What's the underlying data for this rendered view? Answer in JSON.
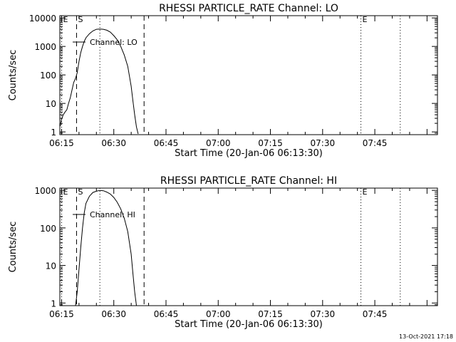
{
  "footer": {
    "timestamp": "13-Oct-2021 17:18"
  },
  "chart_data": [
    {
      "type": "line",
      "title": "RHESSI PARTICLE_RATE Channel: LO",
      "xlabel": "Start Time (20-Jan-06 06:13:30)",
      "ylabel": "Counts/sec",
      "x_unit": "minutes",
      "xlim": [
        374.5,
        483
      ],
      "xticks": [
        {
          "v": 375,
          "label": "06:15"
        },
        {
          "v": 390,
          "label": "06:30"
        },
        {
          "v": 405,
          "label": "06:45"
        },
        {
          "v": 420,
          "label": "07:00"
        },
        {
          "v": 435,
          "label": "07:15"
        },
        {
          "v": 450,
          "label": "07:30"
        },
        {
          "v": 465,
          "label": "07:45"
        }
      ],
      "yscale": "log",
      "ylim": [
        0.8,
        12000
      ],
      "yticks": [
        {
          "v": 1,
          "label": "1"
        },
        {
          "v": 10,
          "label": "10"
        },
        {
          "v": 100,
          "label": "100"
        },
        {
          "v": 1000,
          "label": "1000"
        },
        {
          "v": 10000,
          "label": "10000"
        }
      ],
      "legend": {
        "label": "Channel: LO",
        "position": "top-left"
      },
      "markers": [
        {
          "x": 375.0,
          "style": "dotted",
          "label": "E"
        },
        {
          "x": 379.3,
          "style": "dashed",
          "label": "S"
        },
        {
          "x": 386.0,
          "style": "dotted",
          "label": ""
        },
        {
          "x": 398.7,
          "style": "dashed",
          "label": ""
        },
        {
          "x": 461.0,
          "style": "dotted",
          "label": "E"
        },
        {
          "x": 472.3,
          "style": "dotted",
          "label": ""
        }
      ],
      "series": [
        {
          "x": [
            374.6,
            375.0,
            375.5,
            376.0,
            376.5,
            377.0,
            377.5,
            378.0,
            378.5,
            379.0,
            379.5,
            380.0,
            380.5,
            381.0,
            381.5,
            382.0,
            383.0,
            384.0,
            385.0,
            386.0,
            387.0,
            388.0,
            389.0,
            390.0,
            391.0,
            392.0,
            393.0,
            394.0,
            395.0,
            395.5,
            396.0,
            396.5,
            397.0
          ],
          "y": [
            1.6,
            2.8,
            4.0,
            5.0,
            6.0,
            10,
            16,
            30,
            55,
            75,
            120,
            300,
            600,
            1000,
            1500,
            2000,
            2800,
            3500,
            4000,
            4100,
            4000,
            3700,
            3200,
            2400,
            1700,
            1000,
            500,
            200,
            40,
            12,
            4,
            1.5,
            0.85
          ]
        }
      ]
    },
    {
      "type": "line",
      "title": "RHESSI PARTICLE_RATE Channel: HI",
      "xlabel": "Start Time (20-Jan-06 06:13:30)",
      "ylabel": "Counts/sec",
      "x_unit": "minutes",
      "xlim": [
        374.5,
        483
      ],
      "xticks": [
        {
          "v": 375,
          "label": "06:15"
        },
        {
          "v": 390,
          "label": "06:30"
        },
        {
          "v": 405,
          "label": "06:45"
        },
        {
          "v": 420,
          "label": "07:00"
        },
        {
          "v": 435,
          "label": "07:15"
        },
        {
          "v": 450,
          "label": "07:30"
        },
        {
          "v": 465,
          "label": "07:45"
        }
      ],
      "yscale": "log",
      "ylim": [
        0.85,
        1150
      ],
      "yticks": [
        {
          "v": 1,
          "label": "1"
        },
        {
          "v": 10,
          "label": "10"
        },
        {
          "v": 100,
          "label": "100"
        },
        {
          "v": 1000,
          "label": "1000"
        }
      ],
      "legend": {
        "label": "Channel: HI",
        "position": "top-left"
      },
      "markers": [
        {
          "x": 375.0,
          "style": "dotted",
          "label": "E"
        },
        {
          "x": 379.3,
          "style": "dashed",
          "label": "S"
        },
        {
          "x": 386.0,
          "style": "dotted",
          "label": ""
        },
        {
          "x": 398.7,
          "style": "dashed",
          "label": ""
        },
        {
          "x": 461.0,
          "style": "dotted",
          "label": "E"
        },
        {
          "x": 472.3,
          "style": "dotted",
          "label": ""
        }
      ],
      "series": [
        {
          "x": [
            379.0,
            379.5,
            380.0,
            380.5,
            381.0,
            381.5,
            382.0,
            383.0,
            384.0,
            385.0,
            386.0,
            387.0,
            388.0,
            389.0,
            390.0,
            391.0,
            392.0,
            393.0,
            394.0,
            395.0,
            395.5,
            396.0,
            396.5
          ],
          "y": [
            0.85,
            2,
            8,
            30,
            100,
            250,
            450,
            700,
            880,
            950,
            1000,
            980,
            900,
            800,
            650,
            480,
            320,
            180,
            80,
            20,
            6,
            2,
            0.85
          ]
        }
      ]
    }
  ]
}
